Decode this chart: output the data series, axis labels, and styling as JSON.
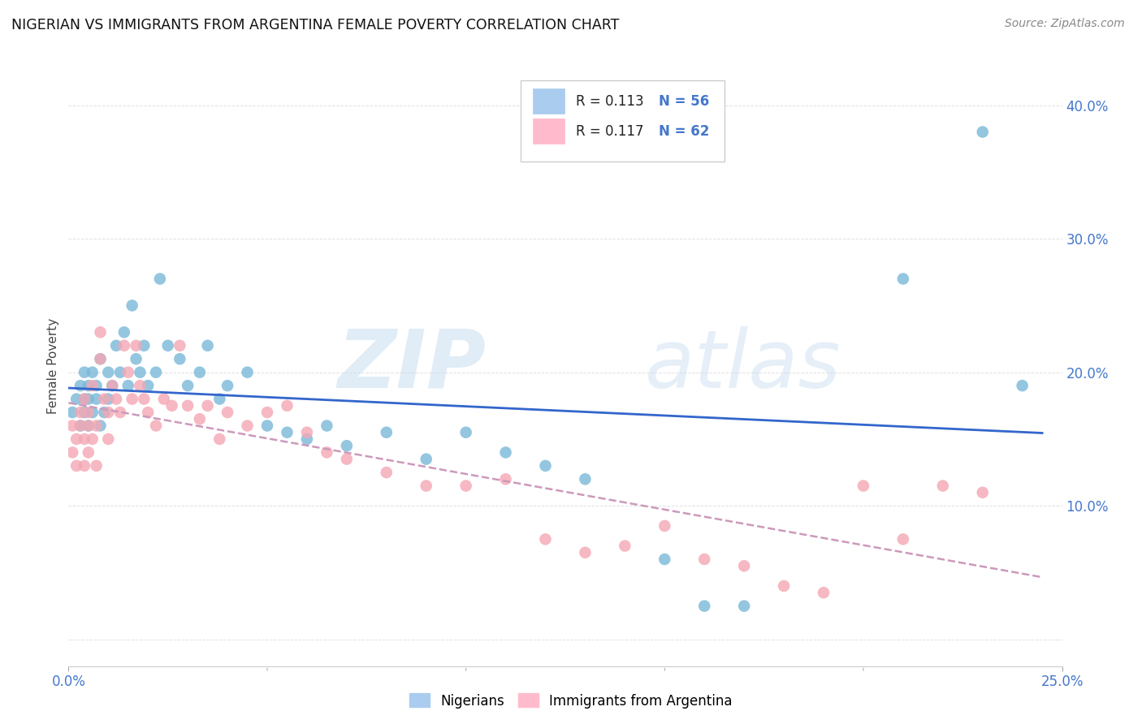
{
  "title": "NIGERIAN VS IMMIGRANTS FROM ARGENTINA FEMALE POVERTY CORRELATION CHART",
  "source": "Source: ZipAtlas.com",
  "ylabel": "Female Poverty",
  "yticks": [
    0.0,
    0.1,
    0.2,
    0.3,
    0.4
  ],
  "ytick_labels": [
    "",
    "10.0%",
    "20.0%",
    "30.0%",
    "40.0%"
  ],
  "xlim": [
    0.0,
    0.25
  ],
  "ylim": [
    -0.02,
    0.43
  ],
  "nigerian_color": "#7ab8d9",
  "argentina_color": "#f4a7b3",
  "nigerian_line_color": "#3366cc",
  "argentina_line_color": "#cc99bb",
  "watermark_zip": "ZIP",
  "watermark_atlas": "atlas",
  "background_color": "#ffffff",
  "grid_color": "#e0e0e0",
  "legend_entries": [
    {
      "color": "#aaccee",
      "R": "0.113",
      "N": "56"
    },
    {
      "color": "#ffbbcc",
      "R": "0.117",
      "N": "62"
    }
  ],
  "nigerian_x": [
    0.001,
    0.002,
    0.003,
    0.003,
    0.004,
    0.004,
    0.004,
    0.005,
    0.005,
    0.005,
    0.006,
    0.006,
    0.007,
    0.007,
    0.008,
    0.008,
    0.009,
    0.01,
    0.01,
    0.011,
    0.012,
    0.013,
    0.014,
    0.015,
    0.016,
    0.017,
    0.018,
    0.019,
    0.02,
    0.022,
    0.023,
    0.025,
    0.028,
    0.03,
    0.033,
    0.035,
    0.038,
    0.04,
    0.045,
    0.05,
    0.055,
    0.06,
    0.065,
    0.07,
    0.08,
    0.09,
    0.1,
    0.11,
    0.12,
    0.13,
    0.15,
    0.16,
    0.17,
    0.21,
    0.23,
    0.24
  ],
  "nigerian_y": [
    0.17,
    0.18,
    0.16,
    0.19,
    0.17,
    0.18,
    0.2,
    0.16,
    0.18,
    0.19,
    0.17,
    0.2,
    0.18,
    0.19,
    0.16,
    0.21,
    0.17,
    0.18,
    0.2,
    0.19,
    0.22,
    0.2,
    0.23,
    0.19,
    0.25,
    0.21,
    0.2,
    0.22,
    0.19,
    0.2,
    0.27,
    0.22,
    0.21,
    0.19,
    0.2,
    0.22,
    0.18,
    0.19,
    0.2,
    0.16,
    0.155,
    0.15,
    0.16,
    0.145,
    0.155,
    0.135,
    0.155,
    0.14,
    0.13,
    0.12,
    0.06,
    0.025,
    0.025,
    0.27,
    0.38,
    0.19
  ],
  "argentina_x": [
    0.001,
    0.001,
    0.002,
    0.002,
    0.003,
    0.003,
    0.004,
    0.004,
    0.004,
    0.005,
    0.005,
    0.005,
    0.006,
    0.006,
    0.007,
    0.007,
    0.008,
    0.008,
    0.009,
    0.01,
    0.01,
    0.011,
    0.012,
    0.013,
    0.014,
    0.015,
    0.016,
    0.017,
    0.018,
    0.019,
    0.02,
    0.022,
    0.024,
    0.026,
    0.028,
    0.03,
    0.033,
    0.035,
    0.038,
    0.04,
    0.045,
    0.05,
    0.055,
    0.06,
    0.065,
    0.07,
    0.08,
    0.09,
    0.1,
    0.11,
    0.12,
    0.13,
    0.14,
    0.15,
    0.16,
    0.17,
    0.18,
    0.19,
    0.2,
    0.21,
    0.22,
    0.23
  ],
  "argentina_y": [
    0.14,
    0.16,
    0.13,
    0.15,
    0.16,
    0.17,
    0.13,
    0.15,
    0.18,
    0.14,
    0.16,
    0.17,
    0.15,
    0.19,
    0.13,
    0.16,
    0.21,
    0.23,
    0.18,
    0.15,
    0.17,
    0.19,
    0.18,
    0.17,
    0.22,
    0.2,
    0.18,
    0.22,
    0.19,
    0.18,
    0.17,
    0.16,
    0.18,
    0.175,
    0.22,
    0.175,
    0.165,
    0.175,
    0.15,
    0.17,
    0.16,
    0.17,
    0.175,
    0.155,
    0.14,
    0.135,
    0.125,
    0.115,
    0.115,
    0.12,
    0.075,
    0.065,
    0.07,
    0.085,
    0.06,
    0.055,
    0.04,
    0.035,
    0.115,
    0.075,
    0.115,
    0.11
  ]
}
